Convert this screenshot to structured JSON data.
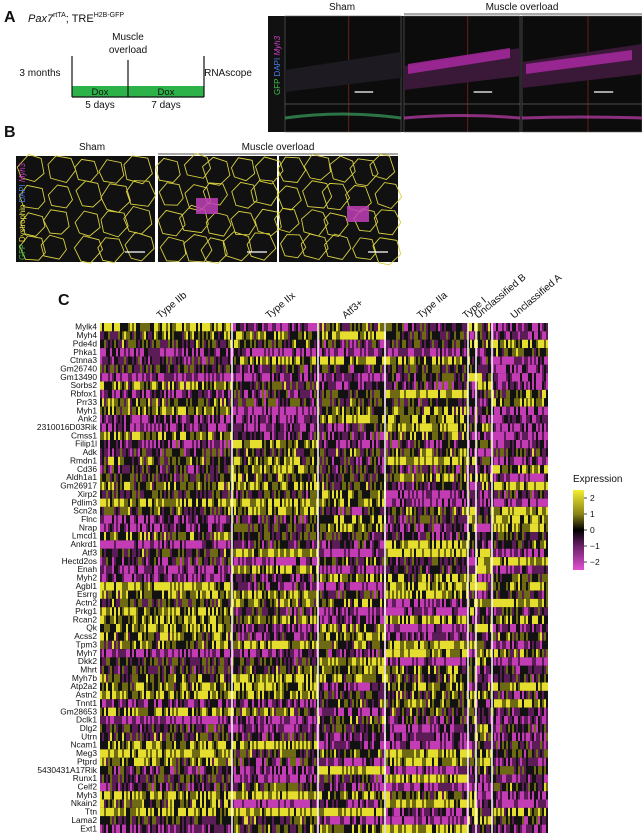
{
  "panel_a": {
    "label": "A",
    "genotype": {
      "gene": "Pax7",
      "gene_sup": "rtTA",
      "driver": "; TRE",
      "driver_sup": "H2B-GFP"
    },
    "timeline": {
      "start": "3 months",
      "overload": [
        "Muscle",
        "overload"
      ],
      "end": "RNAscope",
      "dox_1": "Dox",
      "duration_1": "5 days",
      "dox_2": "Dox",
      "duration_2": "7 days"
    },
    "stain_label": {
      "gfp": "GFP",
      "dapi": "DAPI",
      "probe": "Myh3"
    },
    "groups": [
      "Sham",
      "Muscle overload"
    ]
  },
  "panel_b": {
    "label": "B",
    "stain_label": {
      "gfp": "GFP",
      "dystrophin": "Dystrophin",
      "dapi": "DAPI",
      "probe": "Myh3"
    },
    "groups": [
      "Sham",
      "Muscle overload"
    ]
  },
  "panel_c": {
    "label": "C",
    "clusters": [
      "Type IIb",
      "Type IIx",
      "Atf3+",
      "Type IIa",
      "Type I",
      "Unclassified B",
      "Unclassified A"
    ],
    "genes": [
      "Mylk4",
      "Myh4",
      "Pde4d",
      "Phka1",
      "Ctnna3",
      "Gm26740",
      "Gm13490",
      "Sorbs2",
      "Rbfox1",
      "Prr33",
      "Myh1",
      "Ank2",
      "2310016D03Rik",
      "Cmss1",
      "Filip1l",
      "Adk",
      "Rmdn1",
      "Cd36",
      "Aldh1a1",
      "Gm26917",
      "Xirp2",
      "Pdlim3",
      "Scn2a",
      "Flnc",
      "Nrap",
      "Lmcd1",
      "Ankrd1",
      "Atf3",
      "Hectd2os",
      "Enah",
      "Myh2",
      "Agbl1",
      "Esrrg",
      "Actn2",
      "Prkg1",
      "Rcan2",
      "Qk",
      "Acss2",
      "Tpm3",
      "Myh7",
      "Dkk2",
      "Mhrt",
      "Myh7b",
      "Atp2a2",
      "Astn2",
      "Tnnt1",
      "Gm28653",
      "Dclk1",
      "Dlg2",
      "Utrn",
      "Ncam1",
      "Meg3",
      "Ptprd",
      "5430431A17Rik",
      "Runx1",
      "Celf2",
      "Myh3",
      "Nkain2",
      "Ttn",
      "Lama2",
      "Ext1"
    ],
    "legend": {
      "title": "Expression",
      "lim": [
        -2.5,
        2.5
      ],
      "ticks": [
        2,
        1,
        0,
        {
          "value": -1,
          "label": "−1"
        },
        {
          "value": -2,
          "label": "−2"
        }
      ]
    }
  }
}
